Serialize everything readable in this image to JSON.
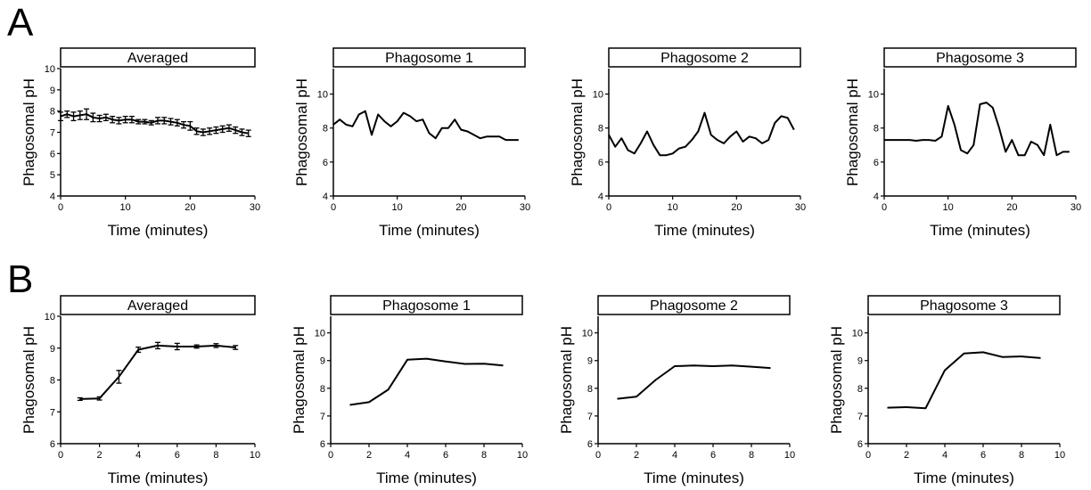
{
  "panels": {
    "a_label": "A",
    "b_label": "B"
  },
  "chart_data": [
    {
      "type": "line",
      "panel": "A",
      "title": "Averaged",
      "xlabel": "Time (minutes)",
      "ylabel": "Phagosomal pH",
      "xlim": [
        0,
        30
      ],
      "ylim": [
        4,
        10
      ],
      "xticks": [
        0,
        10,
        20,
        30
      ],
      "yticks": [
        4,
        5,
        6,
        7,
        8,
        9,
        10
      ],
      "grid": false,
      "error_bars": true,
      "x": [
        0,
        1,
        2,
        3,
        4,
        5,
        6,
        7,
        8,
        9,
        10,
        11,
        12,
        13,
        14,
        15,
        16,
        17,
        18,
        19,
        20,
        21,
        22,
        23,
        24,
        25,
        26,
        27,
        28,
        29
      ],
      "series": [
        {
          "values": [
            7.75,
            7.85,
            7.75,
            7.8,
            7.85,
            7.7,
            7.65,
            7.7,
            7.6,
            7.55,
            7.6,
            7.6,
            7.5,
            7.5,
            7.45,
            7.55,
            7.55,
            7.5,
            7.45,
            7.35,
            7.3,
            7.05,
            7.0,
            7.05,
            7.1,
            7.15,
            7.2,
            7.1,
            7.0,
            6.95
          ],
          "errors": [
            0.2,
            0.15,
            0.2,
            0.2,
            0.25,
            0.2,
            0.15,
            0.15,
            0.15,
            0.15,
            0.15,
            0.15,
            0.1,
            0.1,
            0.1,
            0.15,
            0.15,
            0.15,
            0.15,
            0.15,
            0.2,
            0.15,
            0.15,
            0.15,
            0.15,
            0.15,
            0.15,
            0.15,
            0.15,
            0.15
          ]
        }
      ]
    },
    {
      "type": "line",
      "panel": "A",
      "title": "Phagosome 1",
      "xlabel": "Time (minutes)",
      "ylabel": "Phagosomal pH",
      "xlim": [
        0,
        30
      ],
      "ylim": [
        4,
        11.5
      ],
      "xticks": [
        0,
        10,
        20,
        30
      ],
      "yticks": [
        4,
        6,
        8,
        10
      ],
      "grid": false,
      "x": [
        0,
        1,
        2,
        3,
        4,
        5,
        6,
        7,
        8,
        9,
        10,
        11,
        12,
        13,
        14,
        15,
        16,
        17,
        18,
        19,
        20,
        21,
        22,
        23,
        24,
        25,
        26,
        27,
        28,
        29
      ],
      "series": [
        {
          "values": [
            8.2,
            8.5,
            8.2,
            8.1,
            8.8,
            9.0,
            7.6,
            8.8,
            8.4,
            8.1,
            8.4,
            8.9,
            8.7,
            8.4,
            8.5,
            7.7,
            7.4,
            8.0,
            8.0,
            8.5,
            7.9,
            7.8,
            7.6,
            7.4,
            7.5,
            7.5,
            7.5,
            7.3,
            7.3,
            7.3
          ]
        }
      ]
    },
    {
      "type": "line",
      "panel": "A",
      "title": "Phagosome 2",
      "xlabel": "Time (minutes)",
      "ylabel": "Phagosomal pH",
      "xlim": [
        0,
        30
      ],
      "ylim": [
        4,
        11.5
      ],
      "xticks": [
        0,
        10,
        20,
        30
      ],
      "yticks": [
        4,
        6,
        8,
        10
      ],
      "grid": false,
      "x": [
        0,
        1,
        2,
        3,
        4,
        5,
        6,
        7,
        8,
        9,
        10,
        11,
        12,
        13,
        14,
        15,
        16,
        17,
        18,
        19,
        20,
        21,
        22,
        23,
        24,
        25,
        26,
        27,
        28,
        29
      ],
      "series": [
        {
          "values": [
            7.6,
            6.9,
            7.4,
            6.7,
            6.5,
            7.1,
            7.8,
            7.0,
            6.4,
            6.4,
            6.5,
            6.8,
            6.9,
            7.3,
            7.8,
            8.9,
            7.6,
            7.3,
            7.1,
            7.5,
            7.8,
            7.2,
            7.5,
            7.4,
            7.1,
            7.3,
            8.3,
            8.7,
            8.6,
            7.9
          ]
        }
      ]
    },
    {
      "type": "line",
      "panel": "A",
      "title": "Phagosome 3",
      "xlabel": "Time (minutes)",
      "ylabel": "Phagosomal pH",
      "xlim": [
        0,
        30
      ],
      "ylim": [
        4,
        11.5
      ],
      "xticks": [
        0,
        10,
        20,
        30
      ],
      "yticks": [
        4,
        6,
        8,
        10
      ],
      "grid": false,
      "x": [
        0,
        1,
        2,
        3,
        4,
        5,
        6,
        7,
        8,
        9,
        10,
        11,
        12,
        13,
        14,
        15,
        16,
        17,
        18,
        19,
        20,
        21,
        22,
        23,
        24,
        25,
        26,
        27,
        28,
        29
      ],
      "series": [
        {
          "values": [
            7.3,
            7.3,
            7.3,
            7.3,
            7.3,
            7.25,
            7.3,
            7.3,
            7.25,
            7.5,
            9.3,
            8.2,
            6.7,
            6.5,
            7.0,
            9.4,
            9.5,
            9.2,
            8.0,
            6.6,
            7.3,
            6.4,
            6.4,
            7.2,
            7.0,
            6.4,
            8.2,
            6.4,
            6.6,
            6.6
          ]
        }
      ]
    },
    {
      "type": "line",
      "panel": "B",
      "title": "Averaged",
      "xlabel": "Time (minutes)",
      "ylabel": "Phagosomal pH",
      "xlim": [
        0,
        10
      ],
      "ylim": [
        6,
        10
      ],
      "xticks": [
        0,
        2,
        4,
        6,
        8,
        10
      ],
      "yticks": [
        6,
        7,
        8,
        9,
        10
      ],
      "grid": false,
      "error_bars": true,
      "x": [
        1,
        2,
        3,
        4,
        5,
        6,
        7,
        8,
        9
      ],
      "series": [
        {
          "values": [
            7.4,
            7.42,
            8.1,
            8.95,
            9.08,
            9.05,
            9.05,
            9.08,
            9.02
          ],
          "errors": [
            0.04,
            0.05,
            0.2,
            0.08,
            0.1,
            0.1,
            0.05,
            0.06,
            0.06
          ]
        }
      ]
    },
    {
      "type": "line",
      "panel": "B",
      "title": "Phagosome 1",
      "xlabel": "Time (minutes)",
      "ylabel": "Phagosomal pH",
      "xlim": [
        0,
        10
      ],
      "ylim": [
        6,
        10.6
      ],
      "xticks": [
        0,
        2,
        4,
        6,
        8,
        10
      ],
      "yticks": [
        6,
        7,
        8,
        9,
        10
      ],
      "grid": false,
      "x": [
        1,
        2,
        3,
        4,
        5,
        6,
        7,
        8,
        9
      ],
      "series": [
        {
          "values": [
            7.4,
            7.5,
            7.95,
            9.03,
            9.07,
            8.97,
            8.88,
            8.89,
            8.82
          ]
        }
      ]
    },
    {
      "type": "line",
      "panel": "B",
      "title": "Phagosome 2",
      "xlabel": "Time (minutes)",
      "ylabel": "Phagosomal pH",
      "xlim": [
        0,
        10
      ],
      "ylim": [
        6,
        10.6
      ],
      "xticks": [
        0,
        2,
        4,
        6,
        8,
        10
      ],
      "yticks": [
        6,
        7,
        8,
        9,
        10
      ],
      "grid": false,
      "x": [
        1,
        2,
        3,
        4,
        5,
        6,
        7,
        8,
        9
      ],
      "series": [
        {
          "values": [
            7.62,
            7.7,
            8.3,
            8.8,
            8.82,
            8.8,
            8.82,
            8.78,
            8.73
          ]
        }
      ]
    },
    {
      "type": "line",
      "panel": "B",
      "title": "Phagosome 3",
      "xlabel": "Time (minutes)",
      "ylabel": "Phagosomal pH",
      "xlim": [
        0,
        10
      ],
      "ylim": [
        6,
        10.6
      ],
      "xticks": [
        0,
        2,
        4,
        6,
        8,
        10
      ],
      "yticks": [
        6,
        7,
        8,
        9,
        10
      ],
      "grid": false,
      "x": [
        1,
        2,
        3,
        4,
        5,
        6,
        7,
        8,
        9
      ],
      "series": [
        {
          "values": [
            7.3,
            7.32,
            7.28,
            8.65,
            9.26,
            9.3,
            9.13,
            9.15,
            9.09
          ]
        }
      ]
    }
  ]
}
